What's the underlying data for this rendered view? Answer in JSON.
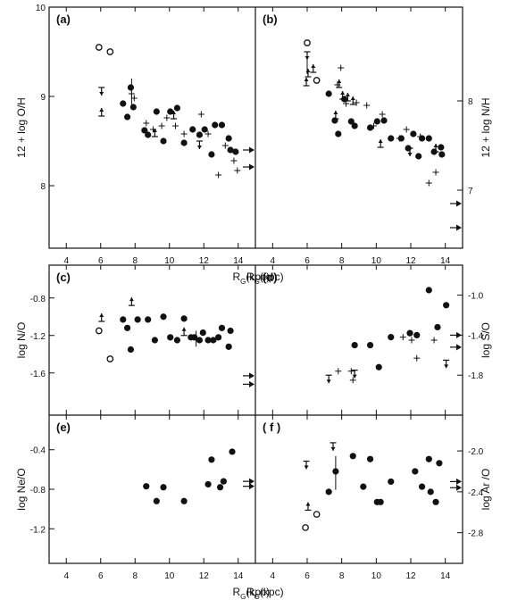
{
  "chart_data": [
    {
      "type": "scatter",
      "panel_label": "(a)",
      "xlabel_main": "R",
      "xlabel_sub": "G",
      "xlabel_unit": "(kpc)",
      "ylabel": "12 + log O/H",
      "xlim": [
        3,
        15
      ],
      "ylim": [
        7.3,
        10.0
      ],
      "xticks": [
        "4",
        "6",
        "8",
        "10",
        "12",
        "14"
      ],
      "yticks": [
        {
          "v": 8,
          "label": "8"
        },
        {
          "v": 9,
          "label": "9"
        },
        {
          "v": 10,
          "label": "10"
        }
      ],
      "yaxis_side": "left",
      "filled": [
        [
          7.3,
          8.92
        ],
        [
          7.55,
          8.77
        ],
        [
          7.75,
          9.1
        ],
        [
          7.9,
          8.88
        ],
        [
          8.55,
          8.62
        ],
        [
          8.75,
          8.57
        ],
        [
          9.25,
          8.83
        ],
        [
          9.65,
          8.5
        ],
        [
          10.05,
          8.83
        ],
        [
          10.45,
          8.87
        ],
        [
          10.85,
          8.48
        ],
        [
          11.35,
          8.63
        ],
        [
          11.75,
          8.57
        ],
        [
          12.05,
          8.63
        ],
        [
          12.45,
          8.35
        ],
        [
          12.65,
          8.68
        ],
        [
          13.05,
          8.68
        ],
        [
          13.45,
          8.53
        ],
        [
          13.55,
          8.4
        ],
        [
          13.85,
          8.38
        ]
      ],
      "open": [
        [
          5.9,
          9.55
        ],
        [
          6.55,
          9.5
        ]
      ],
      "crosses": [
        [
          7.8,
          9.03
        ],
        [
          7.95,
          8.98
        ],
        [
          8.65,
          8.7
        ],
        [
          9.05,
          8.63
        ],
        [
          9.55,
          8.67
        ],
        [
          9.85,
          8.76
        ],
        [
          10.35,
          8.67
        ],
        [
          10.85,
          8.58
        ],
        [
          11.85,
          8.8
        ],
        [
          12.25,
          8.58
        ],
        [
          12.85,
          8.12
        ],
        [
          13.25,
          8.45
        ],
        [
          13.75,
          8.28
        ],
        [
          13.95,
          8.17
        ]
      ],
      "lower_limits": [
        [
          6.05,
          8.78
        ],
        [
          9.15,
          8.55
        ],
        [
          10.25,
          8.75
        ]
      ],
      "upper_limits": [
        [
          6.05,
          9.1
        ],
        [
          11.75,
          8.5
        ]
      ],
      "error_bars": [
        [
          7.8,
          8.88,
          9.2
        ]
      ],
      "solar_arrows": [
        8.4,
        8.21
      ]
    },
    {
      "type": "scatter",
      "panel_label": "(b)",
      "xlabel_main": "R",
      "xlabel_sub": "G",
      "xlabel_unit": "(kpc)",
      "ylabel": "12 + log N/H",
      "xlim": [
        3,
        15
      ],
      "ylim": [
        6.35,
        9.05
      ],
      "xticks": [
        "4",
        "6",
        "8",
        "10",
        "12",
        "14"
      ],
      "yticks": [
        {
          "v": 7,
          "label": "7"
        },
        {
          "v": 8,
          "label": "8"
        }
      ],
      "yaxis_side": "right",
      "filled": [
        [
          7.25,
          8.08
        ],
        [
          7.6,
          7.78
        ],
        [
          7.8,
          7.63
        ],
        [
          8.15,
          8.02
        ],
        [
          8.55,
          7.77
        ],
        [
          8.75,
          7.72
        ],
        [
          9.65,
          7.7
        ],
        [
          10.05,
          7.77
        ],
        [
          10.45,
          7.78
        ],
        [
          10.85,
          7.58
        ],
        [
          11.45,
          7.58
        ],
        [
          11.85,
          7.47
        ],
        [
          12.15,
          7.63
        ],
        [
          12.45,
          7.38
        ],
        [
          12.65,
          7.58
        ],
        [
          13.05,
          7.58
        ],
        [
          13.35,
          7.43
        ],
        [
          13.75,
          7.48
        ],
        [
          13.8,
          7.4
        ]
      ],
      "open": [
        [
          6.0,
          8.65
        ],
        [
          6.55,
          8.23
        ]
      ],
      "crosses": [
        [
          7.75,
          8.18
        ],
        [
          7.95,
          8.37
        ],
        [
          8.25,
          7.97
        ],
        [
          8.85,
          7.98
        ],
        [
          9.45,
          7.95
        ],
        [
          9.85,
          7.72
        ],
        [
          10.35,
          7.85
        ],
        [
          11.35,
          7.58
        ],
        [
          11.75,
          7.68
        ],
        [
          12.55,
          7.6
        ],
        [
          13.05,
          7.08
        ],
        [
          13.45,
          7.2
        ]
      ],
      "lower_limits": [
        [
          5.95,
          8.17
        ],
        [
          6.05,
          8.27
        ],
        [
          6.35,
          8.32
        ],
        [
          7.65,
          7.8
        ],
        [
          7.85,
          8.15
        ],
        [
          8.05,
          8.02
        ],
        [
          8.35,
          8.0
        ],
        [
          8.65,
          7.96
        ],
        [
          10.25,
          7.48
        ],
        [
          13.45,
          7.43
        ]
      ],
      "upper_limits": [
        [
          6.0,
          8.55
        ],
        [
          11.95,
          7.47
        ]
      ],
      "error_bars": [
        [
          6.0,
          8.3,
          8.55
        ]
      ],
      "solar_arrows": [
        6.85,
        6.58
      ]
    },
    {
      "type": "scatter",
      "panel_label": "(c)",
      "ylabel": "log N/O",
      "xlim": [
        3,
        15
      ],
      "ylim": [
        -2.05,
        -0.45
      ],
      "xticks": [],
      "yticks": [
        {
          "v": -0.8,
          "label": "-0.8"
        },
        {
          "v": -1.2,
          "label": "-1.2"
        },
        {
          "v": -1.6,
          "label": "-1.6"
        }
      ],
      "yaxis_side": "left",
      "filled": [
        [
          7.3,
          -1.03
        ],
        [
          7.55,
          -1.12
        ],
        [
          7.75,
          -1.35
        ],
        [
          8.15,
          -1.03
        ],
        [
          8.75,
          -1.03
        ],
        [
          9.15,
          -1.25
        ],
        [
          9.65,
          -1.0
        ],
        [
          10.05,
          -1.22
        ],
        [
          10.45,
          -1.25
        ],
        [
          10.85,
          -1.02
        ],
        [
          11.25,
          -1.22
        ],
        [
          11.45,
          -1.22
        ],
        [
          11.75,
          -1.25
        ],
        [
          11.95,
          -1.17
        ],
        [
          12.25,
          -1.25
        ],
        [
          12.55,
          -1.25
        ],
        [
          12.85,
          -1.22
        ],
        [
          13.05,
          -1.12
        ],
        [
          13.45,
          -1.32
        ],
        [
          13.55,
          -1.15
        ]
      ],
      "open": [
        [
          5.9,
          -1.15
        ],
        [
          6.55,
          -1.45
        ]
      ],
      "crosses": [],
      "lower_limits": [
        [
          6.05,
          -1.05
        ],
        [
          7.8,
          -0.88
        ],
        [
          10.85,
          -1.2
        ]
      ],
      "upper_limits": [],
      "error_bars": [
        [
          11.55,
          -1.32,
          -1.15
        ]
      ],
      "solar_arrows": [
        -1.63,
        -1.72
      ]
    },
    {
      "type": "scatter",
      "panel_label": "(d)",
      "ylabel": "log S/O",
      "xlim": [
        3,
        15
      ],
      "ylim": [
        -2.2,
        -0.7
      ],
      "xticks": [],
      "yticks": [
        {
          "v": -1.0,
          "label": "-1.0"
        },
        {
          "v": -1.4,
          "label": "-1.4"
        },
        {
          "v": -1.8,
          "label": "-1.8"
        }
      ],
      "yaxis_side": "right",
      "filled": [
        [
          8.75,
          -1.5
        ],
        [
          9.65,
          -1.5
        ],
        [
          10.15,
          -1.72
        ],
        [
          10.85,
          -1.42
        ],
        [
          11.95,
          -1.38
        ],
        [
          12.35,
          -1.4
        ],
        [
          13.05,
          -0.95
        ],
        [
          13.55,
          -1.32
        ],
        [
          14.05,
          -1.1
        ]
      ],
      "open": [],
      "crosses": [
        [
          7.8,
          -1.76
        ],
        [
          8.55,
          -1.76
        ],
        [
          8.65,
          -1.85
        ],
        [
          11.55,
          -1.42
        ],
        [
          12.05,
          -1.45
        ],
        [
          12.35,
          -1.63
        ],
        [
          13.35,
          -1.45
        ]
      ],
      "lower_limits": [],
      "upper_limits": [
        [
          7.25,
          -1.8
        ],
        [
          8.75,
          -1.75
        ],
        [
          14.05,
          -1.65
        ]
      ],
      "error_bars": [],
      "solar_arrows": [
        -1.4,
        -1.52
      ]
    },
    {
      "type": "scatter",
      "panel_label": "(e)",
      "xlabel_main": "R",
      "xlabel_sub": "G",
      "xlabel_unit": "(kpc)",
      "ylabel": "log Ne/O",
      "xlim": [
        3,
        15
      ],
      "ylim": [
        -1.55,
        -0.05
      ],
      "xticks": [
        "4",
        "6",
        "8",
        "10",
        "12",
        "14"
      ],
      "yticks": [
        {
          "v": -0.4,
          "label": "-0.4"
        },
        {
          "v": -0.8,
          "label": "-0.8"
        },
        {
          "v": -1.2,
          "label": "-1.2"
        }
      ],
      "yaxis_side": "left",
      "filled": [
        [
          8.65,
          -0.77
        ],
        [
          9.25,
          -0.92
        ],
        [
          9.65,
          -0.78
        ],
        [
          10.85,
          -0.92
        ],
        [
          12.25,
          -0.75
        ],
        [
          12.45,
          -0.5
        ],
        [
          12.95,
          -0.78
        ],
        [
          13.15,
          -0.72
        ],
        [
          13.65,
          -0.42
        ]
      ],
      "open": [],
      "crosses": [],
      "lower_limits": [],
      "upper_limits": [],
      "error_bars": [],
      "solar_arrows": [
        -0.72,
        -0.77
      ]
    },
    {
      "type": "scatter",
      "panel_label": "( f )",
      "xlabel_main": "R",
      "xlabel_sub": "G",
      "xlabel_unit": "(kpc)",
      "ylabel": "log Ar /O",
      "xlim": [
        3,
        15
      ],
      "ylim": [
        -3.1,
        -1.65
      ],
      "xticks": [
        "4",
        "6",
        "8",
        "10",
        "12",
        "14"
      ],
      "yticks": [
        {
          "v": -2.0,
          "label": "-2.0"
        },
        {
          "v": -2.4,
          "label": "-2.4"
        },
        {
          "v": -2.8,
          "label": "-2.8"
        }
      ],
      "yaxis_side": "right",
      "filled": [
        [
          7.25,
          -2.4
        ],
        [
          7.65,
          -2.2
        ],
        [
          8.65,
          -2.05
        ],
        [
          9.25,
          -2.35
        ],
        [
          9.65,
          -2.08
        ],
        [
          10.05,
          -2.5
        ],
        [
          10.25,
          -2.5
        ],
        [
          10.85,
          -2.3
        ],
        [
          12.25,
          -2.2
        ],
        [
          12.65,
          -2.35
        ],
        [
          13.05,
          -2.08
        ],
        [
          13.15,
          -2.4
        ],
        [
          13.45,
          -2.5
        ],
        [
          13.65,
          -2.12
        ]
      ],
      "open": [
        [
          5.9,
          -2.75
        ],
        [
          6.55,
          -2.62
        ]
      ],
      "crosses": [],
      "lower_limits": [
        [
          6.05,
          -2.58
        ]
      ],
      "upper_limits": [
        [
          5.95,
          -2.1
        ],
        [
          7.5,
          -1.92
        ]
      ],
      "error_bars": [
        [
          7.65,
          -2.38,
          -2.05
        ]
      ],
      "solar_arrows": [
        -2.3,
        -2.36
      ]
    }
  ]
}
